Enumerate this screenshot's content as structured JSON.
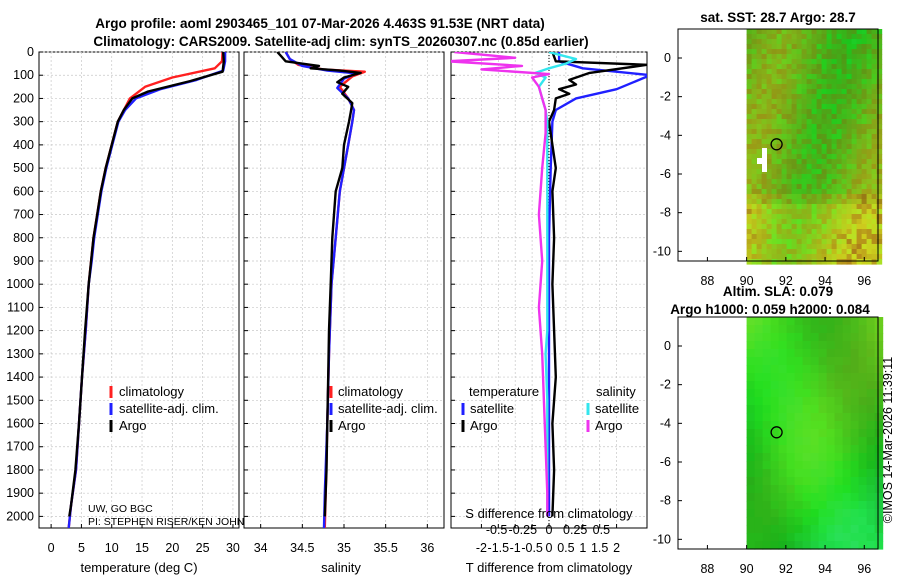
{
  "header": {
    "title_line1": "Argo profile: aoml 2903465_101 07-Mar-2026 4.463S 91.53E (NRT data)",
    "title_line2": "Climatology: CARS2009. Satellite-adj clim: synTS_20260307.nc (0.85d earlier)"
  },
  "colors": {
    "climatology": "#ff2020",
    "satellite_adj": "#2020ff",
    "argo": "#000000",
    "salinity_sat": "#33e6ee",
    "salinity_argo": "#ee33ee"
  },
  "chart_data": [
    {
      "type": "line",
      "name": "temperature",
      "xlabel": "temperature (deg C)",
      "xlim": [
        -2,
        31
      ],
      "xticks": [
        0,
        5,
        10,
        15,
        20,
        25,
        30
      ],
      "ylim": [
        0,
        2050
      ],
      "yticks": [
        0,
        100,
        200,
        300,
        400,
        500,
        600,
        700,
        800,
        900,
        1000,
        1100,
        1200,
        1300,
        1400,
        1500,
        1600,
        1700,
        1800,
        1900,
        2000
      ],
      "legend": [
        "climatology",
        "satellite-adj. clim.",
        "Argo"
      ],
      "annotation1": "UW, GO BGC",
      "annotation2": "PI: STEPHEN RISER/KEN JOHNSON",
      "series": [
        {
          "name": "climatology",
          "color": "#ff2020",
          "points": [
            [
              28.3,
              0
            ],
            [
              28.2,
              40
            ],
            [
              27.0,
              70
            ],
            [
              20.0,
              110
            ],
            [
              15.5,
              150
            ],
            [
              13.0,
              200
            ],
            [
              11.8,
              260
            ],
            [
              11.0,
              300
            ],
            [
              10.0,
              400
            ],
            [
              9.0,
              500
            ],
            [
              8.2,
              600
            ],
            [
              7.6,
              700
            ],
            [
              7.0,
              800
            ],
            [
              6.6,
              900
            ],
            [
              6.2,
              1000
            ],
            [
              5.7,
              1200
            ],
            [
              5.1,
              1400
            ],
            [
              4.6,
              1600
            ],
            [
              4.1,
              1800
            ],
            [
              3.3,
              1950
            ],
            [
              2.9,
              2050
            ]
          ]
        },
        {
          "name": "satellite-adj. clim.",
          "color": "#2020ff",
          "points": [
            [
              28.7,
              0
            ],
            [
              28.7,
              40
            ],
            [
              28.4,
              80
            ],
            [
              24.0,
              120
            ],
            [
              18.0,
              160
            ],
            [
              14.0,
              200
            ],
            [
              12.2,
              250
            ],
            [
              11.1,
              300
            ],
            [
              10.1,
              400
            ],
            [
              9.1,
              500
            ],
            [
              8.3,
              600
            ],
            [
              7.7,
              700
            ],
            [
              7.1,
              800
            ],
            [
              6.7,
              900
            ],
            [
              6.2,
              1000
            ],
            [
              5.7,
              1200
            ],
            [
              5.1,
              1400
            ],
            [
              4.6,
              1600
            ],
            [
              4.1,
              1800
            ],
            [
              3.3,
              1950
            ],
            [
              2.9,
              2050
            ]
          ]
        },
        {
          "name": "Argo",
          "color": "#000000",
          "points": [
            [
              28.4,
              0
            ],
            [
              28.5,
              40
            ],
            [
              28.3,
              85
            ],
            [
              23.0,
              125
            ],
            [
              16.0,
              170
            ],
            [
              13.4,
              200
            ],
            [
              12.0,
              250
            ],
            [
              11.0,
              300
            ],
            [
              10.0,
              400
            ],
            [
              9.0,
              500
            ],
            [
              8.2,
              600
            ],
            [
              7.6,
              700
            ],
            [
              7.0,
              800
            ],
            [
              6.6,
              900
            ],
            [
              6.2,
              1000
            ],
            [
              5.6,
              1200
            ],
            [
              5.1,
              1400
            ],
            [
              4.6,
              1600
            ],
            [
              4.0,
              1800
            ],
            [
              3.3,
              1950
            ],
            [
              3.0,
              2000
            ]
          ]
        }
      ]
    },
    {
      "type": "line",
      "name": "salinity",
      "xlabel": "salinity",
      "xlim": [
        33.8,
        36.2
      ],
      "xticks": [
        34,
        34.5,
        35,
        35.5,
        36
      ],
      "xticklabels": [
        "34",
        "34.5",
        "35",
        "35.5",
        "36"
      ],
      "legend": [
        "climatology",
        "satellite-adj. clim.",
        "Argo"
      ],
      "series": [
        {
          "name": "climatology",
          "color": "#ff2020",
          "points": [
            [
              34.3,
              0
            ],
            [
              34.35,
              30
            ],
            [
              34.45,
              55
            ],
            [
              34.75,
              75
            ],
            [
              35.25,
              85
            ],
            [
              35.1,
              105
            ],
            [
              34.95,
              150
            ],
            [
              35.05,
              200
            ],
            [
              35.12,
              250
            ],
            [
              35.1,
              300
            ],
            [
              35.05,
              400
            ],
            [
              35.0,
              500
            ],
            [
              34.95,
              600
            ],
            [
              34.9,
              800
            ],
            [
              34.85,
              1000
            ],
            [
              34.82,
              1300
            ],
            [
              34.8,
              1600
            ],
            [
              34.78,
              1900
            ],
            [
              34.77,
              2050
            ]
          ]
        },
        {
          "name": "satellite-adj. clim.",
          "color": "#2020ff",
          "points": [
            [
              34.3,
              0
            ],
            [
              34.35,
              30
            ],
            [
              34.5,
              60
            ],
            [
              34.8,
              80
            ],
            [
              35.15,
              92
            ],
            [
              35.0,
              115
            ],
            [
              34.92,
              155
            ],
            [
              35.05,
              200
            ],
            [
              35.12,
              250
            ],
            [
              35.1,
              300
            ],
            [
              35.05,
              400
            ],
            [
              35.0,
              500
            ],
            [
              34.95,
              600
            ],
            [
              34.9,
              800
            ],
            [
              34.85,
              1000
            ],
            [
              34.82,
              1300
            ],
            [
              34.8,
              1600
            ],
            [
              34.77,
              1900
            ],
            [
              34.76,
              2050
            ]
          ]
        },
        {
          "name": "Argo",
          "color": "#000000",
          "points": [
            [
              34.2,
              0
            ],
            [
              34.25,
              20
            ],
            [
              34.3,
              40
            ],
            [
              34.6,
              55
            ],
            [
              34.7,
              60
            ],
            [
              34.6,
              70
            ],
            [
              34.95,
              80
            ],
            [
              35.2,
              90
            ],
            [
              35.0,
              110
            ],
            [
              34.92,
              130
            ],
            [
              35.05,
              150
            ],
            [
              34.98,
              180
            ],
            [
              35.1,
              220
            ],
            [
              35.08,
              260
            ],
            [
              35.06,
              300
            ],
            [
              35.0,
              400
            ],
            [
              34.98,
              500
            ],
            [
              34.9,
              600
            ],
            [
              34.88,
              700
            ],
            [
              34.86,
              800
            ],
            [
              34.84,
              1000
            ],
            [
              34.82,
              1200
            ],
            [
              34.81,
              1400
            ],
            [
              34.8,
              1600
            ],
            [
              34.79,
              1800
            ],
            [
              34.77,
              2000
            ]
          ]
        }
      ]
    },
    {
      "type": "line",
      "name": "difference from climatology",
      "xlabel": "T difference from climatology",
      "xlabel_top": "S difference from climatology",
      "xlim": [
        -2.9,
        2.9
      ],
      "xticks": [
        -2,
        -1.5,
        -1,
        -0.5,
        0,
        0.5,
        1,
        1.5,
        2
      ],
      "xticklabels": [
        "-2",
        "-1.5",
        "-1",
        "-0.5",
        "0",
        "0.5",
        "1",
        "1.5",
        "2"
      ],
      "xticks_top": [
        -0.5,
        -0.25,
        0,
        0.25,
        0.5
      ],
      "xticklabels_top": [
        "-0.5",
        "-0.25",
        "0",
        "0.25",
        "0.5"
      ],
      "legend_group_labels": [
        "temperature",
        "salinity"
      ],
      "legend_labels": [
        "satellite",
        "Argo",
        "satellite",
        "Argo"
      ],
      "series": [
        {
          "name": "temperature satellite",
          "color": "#2020ff",
          "points": [
            [
              0.3,
              0
            ],
            [
              0.3,
              40
            ],
            [
              1.0,
              70
            ],
            [
              3.0,
              100
            ],
            [
              2.5,
              130
            ],
            [
              2.0,
              160
            ],
            [
              0.8,
              200
            ],
            [
              0.2,
              250
            ],
            [
              0.1,
              300
            ],
            [
              0.05,
              500
            ],
            [
              0.0,
              800
            ],
            [
              0.0,
              1000
            ],
            [
              0.0,
              1500
            ],
            [
              0.0,
              2000
            ]
          ]
        },
        {
          "name": "temperature Argo",
          "color": "#000000",
          "points": [
            [
              0.1,
              0
            ],
            [
              0.2,
              40
            ],
            [
              2.9,
              55
            ],
            [
              1.2,
              90
            ],
            [
              0.6,
              120
            ],
            [
              0.8,
              140
            ],
            [
              0.3,
              160
            ],
            [
              0.6,
              180
            ],
            [
              0.2,
              200
            ],
            [
              0.15,
              250
            ],
            [
              0.0,
              300
            ],
            [
              0.2,
              500
            ],
            [
              0.1,
              600
            ],
            [
              0.15,
              800
            ],
            [
              0.1,
              1000
            ],
            [
              0.15,
              1200
            ],
            [
              0.2,
              1400
            ],
            [
              0.1,
              1600
            ],
            [
              0.15,
              1800
            ],
            [
              0.1,
              2000
            ]
          ]
        },
        {
          "name": "salinity satellite",
          "color": "#33e6ee",
          "points": [
            [
              0.0,
              0
            ],
            [
              0.25,
              10
            ],
            [
              0.8,
              30
            ],
            [
              0.5,
              50
            ],
            [
              0.0,
              70
            ],
            [
              -0.4,
              90
            ],
            [
              -0.1,
              110
            ],
            [
              -0.3,
              150
            ],
            [
              -0.2,
              200
            ],
            [
              -0.1,
              250
            ],
            [
              -0.05,
              300
            ],
            [
              -0.05,
              500
            ],
            [
              -0.05,
              800
            ],
            [
              -0.05,
              1000
            ],
            [
              -0.05,
              1200
            ],
            [
              -0.1,
              1300
            ],
            [
              -0.05,
              1500
            ],
            [
              -0.05,
              1800
            ],
            [
              -0.05,
              2000
            ]
          ]
        },
        {
          "name": "salinity Argo",
          "color": "#ee33ee",
          "points": [
            [
              -2.8,
              0
            ],
            [
              -1.0,
              25
            ],
            [
              -3.0,
              40
            ],
            [
              -0.8,
              60
            ],
            [
              -2.0,
              75
            ],
            [
              0.0,
              95
            ],
            [
              -0.5,
              110
            ],
            [
              -0.3,
              150
            ],
            [
              -0.2,
              200
            ],
            [
              -0.1,
              250
            ],
            [
              -0.1,
              350
            ],
            [
              -0.2,
              500
            ],
            [
              -0.3,
              700
            ],
            [
              -0.2,
              900
            ],
            [
              -0.3,
              1100
            ],
            [
              -0.2,
              1300
            ],
            [
              -0.15,
              1500
            ],
            [
              -0.1,
              1700
            ],
            [
              -0.05,
              1900
            ],
            [
              -0.05,
              2000
            ]
          ]
        }
      ]
    },
    {
      "type": "heatmap",
      "name": "sat sst map",
      "title": "sat. SST: 28.7 Argo: 28.7",
      "xlim": [
        86.5,
        96.7
      ],
      "ylim": [
        -10.5,
        1.5
      ],
      "xticks": [
        88,
        90,
        92,
        94,
        96
      ],
      "yticks": [
        0,
        -2,
        -4,
        -6,
        -8,
        -10
      ],
      "land_edge_lon": 90,
      "argo_marker": [
        91.53,
        -4.463
      ]
    },
    {
      "type": "heatmap",
      "name": "altimetry map",
      "title_line1": "Altim. SLA: 0.079",
      "title_line2": "Argo h1000: 0.059 h2000: 0.084",
      "xlim": [
        86.5,
        96.7
      ],
      "ylim": [
        -10.5,
        1.5
      ],
      "xticks": [
        88,
        90,
        92,
        94,
        96
      ],
      "yticks": [
        0,
        -2,
        -4,
        -6,
        -8,
        -10
      ],
      "land_edge_lon": 90,
      "argo_marker": [
        91.53,
        -4.463
      ]
    }
  ],
  "footer": {
    "credit": "©IMOS 14-Mar-2026 11:39:11"
  }
}
